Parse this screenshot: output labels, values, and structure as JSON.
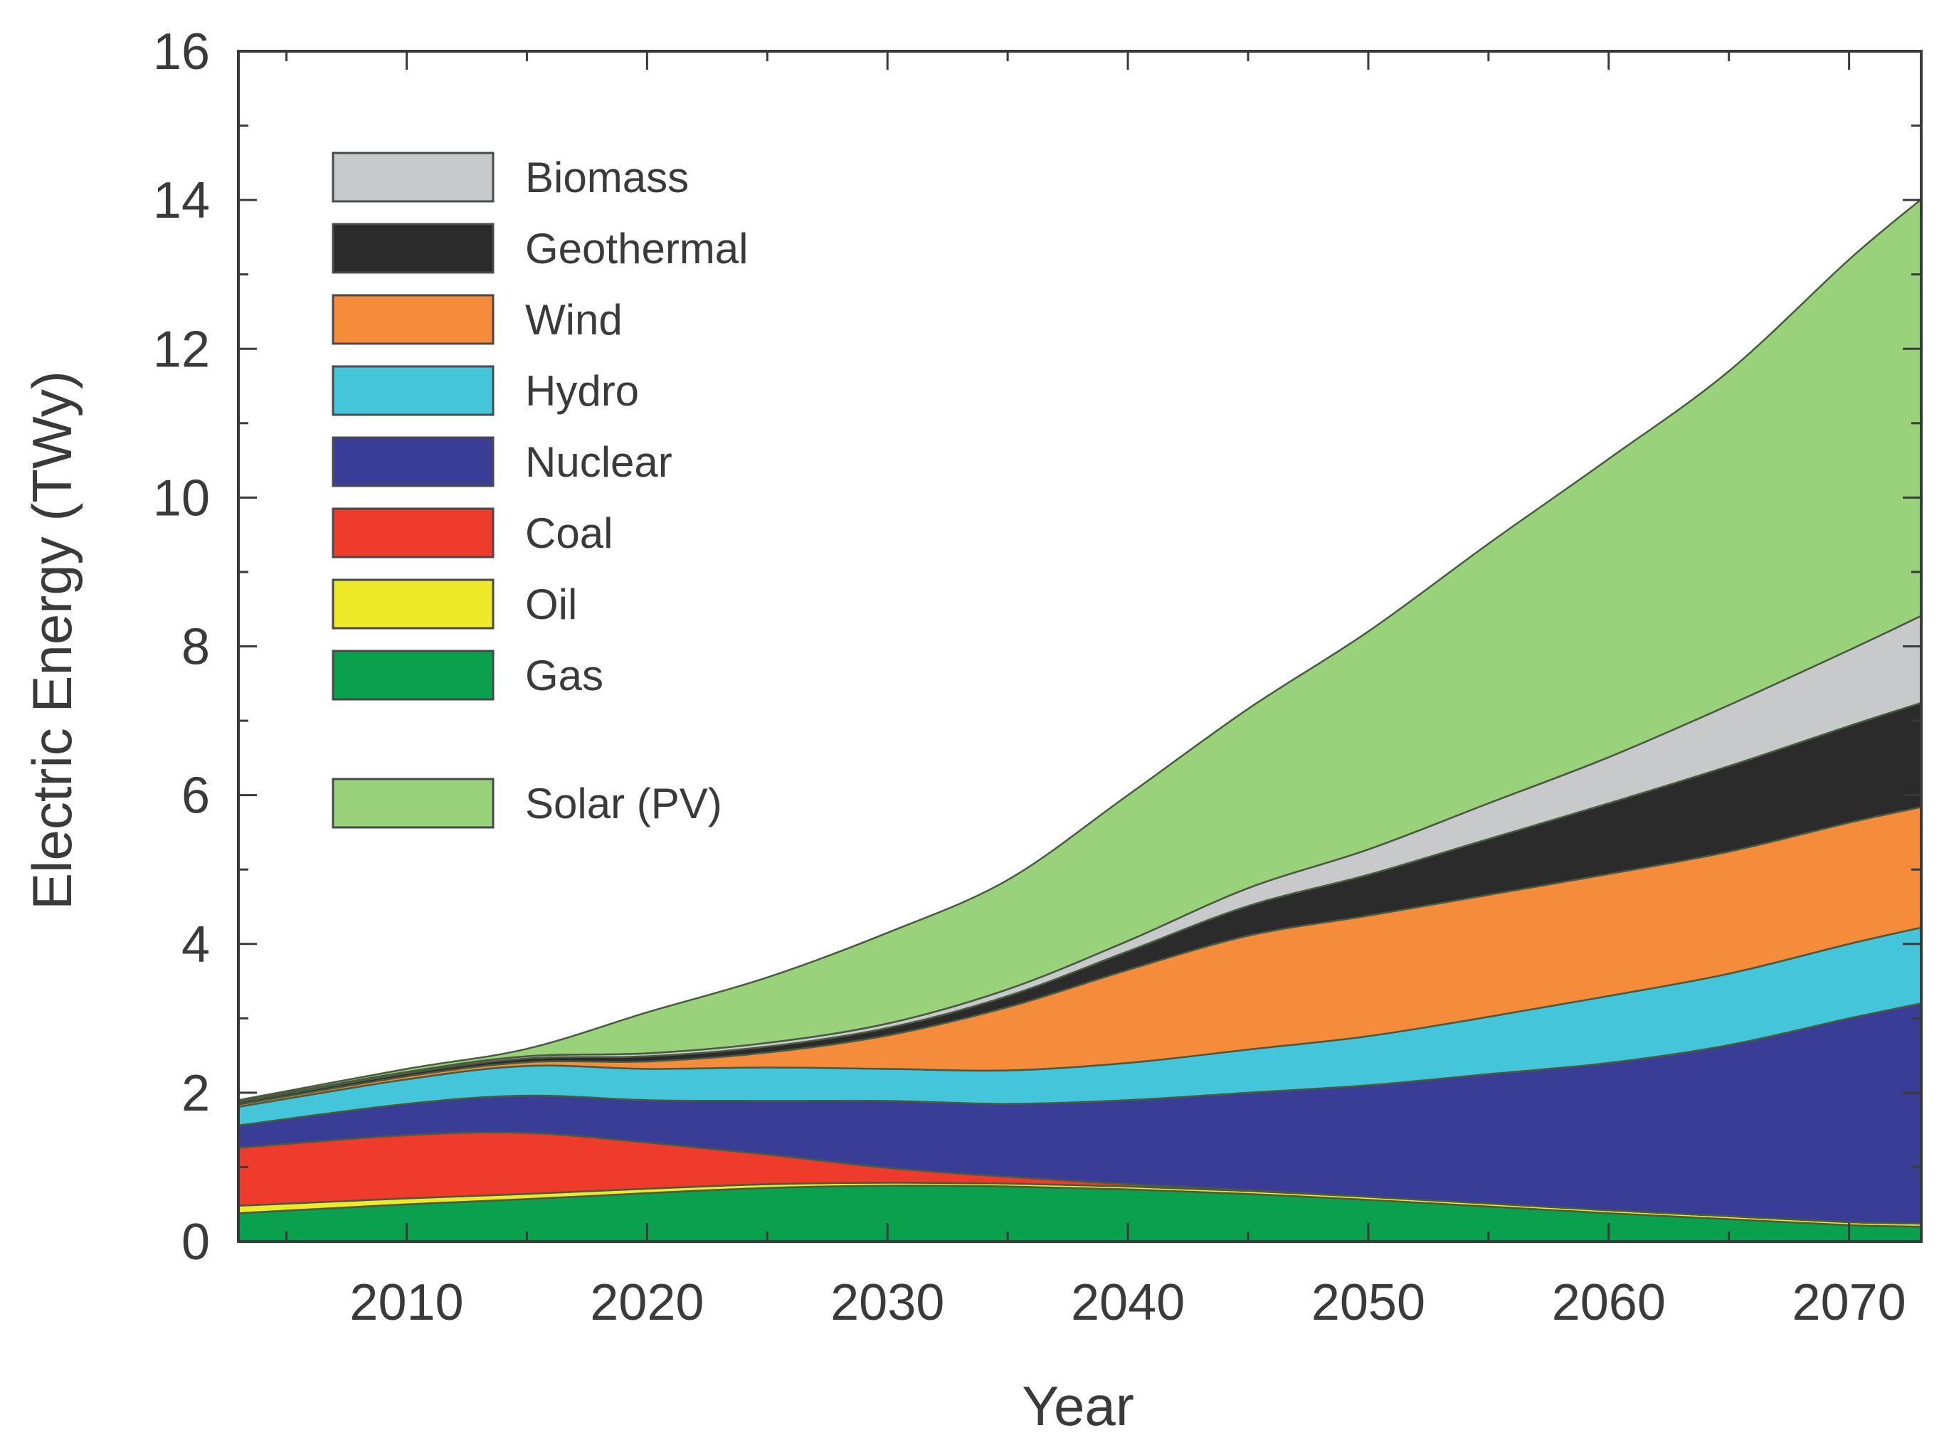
{
  "chart_data": {
    "type": "area",
    "stacked": true,
    "xlabel": "Year",
    "ylabel": "Electric Energy (TWy)",
    "xlim": [
      2003,
      2073
    ],
    "ylim": [
      0,
      16
    ],
    "xticks": [
      2010,
      2020,
      2030,
      2040,
      2050,
      2060,
      2070
    ],
    "yticks": [
      0,
      2,
      4,
      6,
      8,
      10,
      12,
      14,
      16
    ],
    "grid": false,
    "legend_position": "top-left",
    "x": [
      2003,
      2010,
      2015,
      2020,
      2025,
      2030,
      2035,
      2040,
      2045,
      2050,
      2055,
      2060,
      2065,
      2070,
      2073
    ],
    "series": [
      {
        "name": "Gas",
        "color": "#0aa04e",
        "values": [
          0.38,
          0.5,
          0.57,
          0.65,
          0.72,
          0.75,
          0.74,
          0.7,
          0.64,
          0.56,
          0.47,
          0.38,
          0.3,
          0.22,
          0.2
        ]
      },
      {
        "name": "Oil",
        "color": "#eeea2a",
        "values": [
          0.1,
          0.08,
          0.07,
          0.06,
          0.05,
          0.04,
          0.04,
          0.04,
          0.04,
          0.04,
          0.04,
          0.04,
          0.04,
          0.04,
          0.04
        ]
      },
      {
        "name": "Coal",
        "color": "#ef3b2c",
        "values": [
          0.78,
          0.85,
          0.82,
          0.62,
          0.4,
          0.2,
          0.09,
          0.03,
          0.01,
          0,
          0,
          0,
          0,
          0,
          0
        ]
      },
      {
        "name": "Nuclear",
        "color": "#3a3d96",
        "values": [
          0.3,
          0.42,
          0.5,
          0.57,
          0.72,
          0.9,
          0.98,
          1.13,
          1.31,
          1.5,
          1.74,
          1.98,
          2.3,
          2.74,
          2.96
        ]
      },
      {
        "name": "Hydro",
        "color": "#45c5d9",
        "values": [
          0.25,
          0.33,
          0.4,
          0.42,
          0.45,
          0.43,
          0.45,
          0.5,
          0.58,
          0.66,
          0.77,
          0.9,
          0.96,
          1.0,
          1.02
        ]
      },
      {
        "name": "Wind",
        "color": "#f58c3b",
        "values": [
          0.03,
          0.04,
          0.05,
          0.1,
          0.2,
          0.45,
          0.85,
          1.25,
          1.53,
          1.62,
          1.64,
          1.64,
          1.64,
          1.63,
          1.62
        ]
      },
      {
        "name": "Geothermal",
        "color": "#2b2b2b",
        "values": [
          0.03,
          0.04,
          0.05,
          0.07,
          0.08,
          0.1,
          0.15,
          0.25,
          0.4,
          0.55,
          0.75,
          0.95,
          1.15,
          1.3,
          1.4
        ]
      },
      {
        "name": "Biomass",
        "color": "#c8c9cb",
        "values": [
          0.01,
          0.02,
          0.03,
          0.04,
          0.05,
          0.06,
          0.09,
          0.14,
          0.24,
          0.34,
          0.48,
          0.62,
          0.82,
          1.02,
          1.17
        ]
      },
      {
        "name": "Solar (PV)",
        "color": "#9ad27c",
        "values": [
          0.02,
          0.04,
          0.1,
          0.55,
          0.88,
          1.22,
          1.47,
          1.96,
          2.41,
          2.93,
          3.49,
          4.01,
          4.49,
          5.25,
          5.6
        ]
      }
    ]
  }
}
